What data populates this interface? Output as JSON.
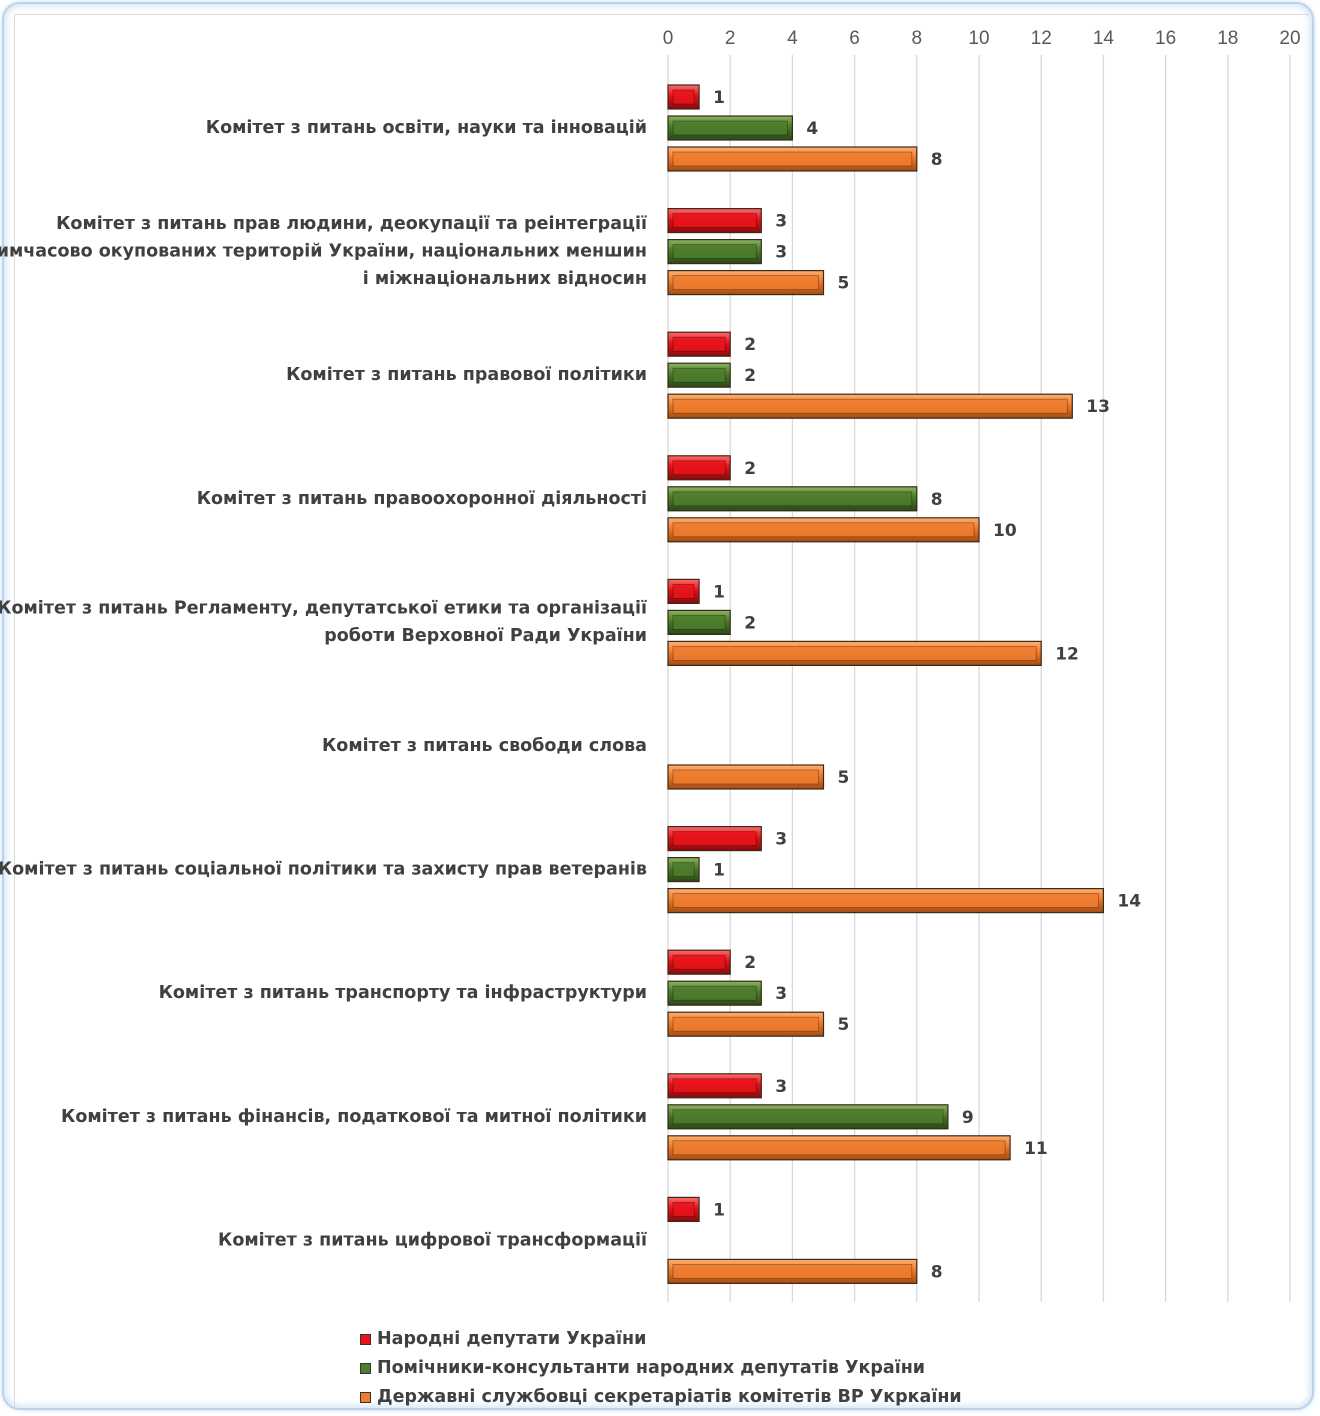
{
  "chart_data": {
    "type": "bar",
    "orientation": "horizontal",
    "xlim": [
      0,
      20
    ],
    "xticks": [
      0,
      2,
      4,
      6,
      8,
      10,
      12,
      14,
      16,
      18,
      20
    ],
    "grid": true,
    "legend_position": "bottom",
    "categories": [
      [
        "Комітет з питань освіти, науки та інновацій"
      ],
      [
        "Комітет з питань прав людини, деокупації та реінтеграції",
        "тимчасово окупованих територій України, національних меншин",
        "і міжнаціональних відносин"
      ],
      [
        "Комітет з питань правової політики"
      ],
      [
        "Комітет з питань правоохоронної діяльності"
      ],
      [
        "Комітет з питань Регламенту, депутатської етики та організації",
        "роботи Верховної Ради України"
      ],
      [
        "Комітет з питань свободи слова"
      ],
      [
        "Комітет з питань соціальної політики та захисту прав ветеранів"
      ],
      [
        "Комітет з питань транспорту та інфраструктури"
      ],
      [
        "Комітет з питань фінансів, податкової та митної політики"
      ],
      [
        "Комітет з питань цифрової трансформації"
      ]
    ],
    "series": [
      {
        "name": "Народні депутати України",
        "color": "#e8141a",
        "values": [
          1,
          3,
          2,
          2,
          1,
          null,
          3,
          2,
          3,
          1
        ]
      },
      {
        "name": "Помічники-консультанти народних депутатів України",
        "color": "#4e7d2d",
        "values": [
          4,
          3,
          2,
          8,
          2,
          null,
          1,
          3,
          9,
          null
        ]
      },
      {
        "name": "Державні службовці секретаріатів комітетів ВР Укркаїни",
        "color": "#ee7d2f",
        "values": [
          8,
          5,
          13,
          10,
          12,
          5,
          14,
          5,
          11,
          8
        ]
      }
    ]
  }
}
